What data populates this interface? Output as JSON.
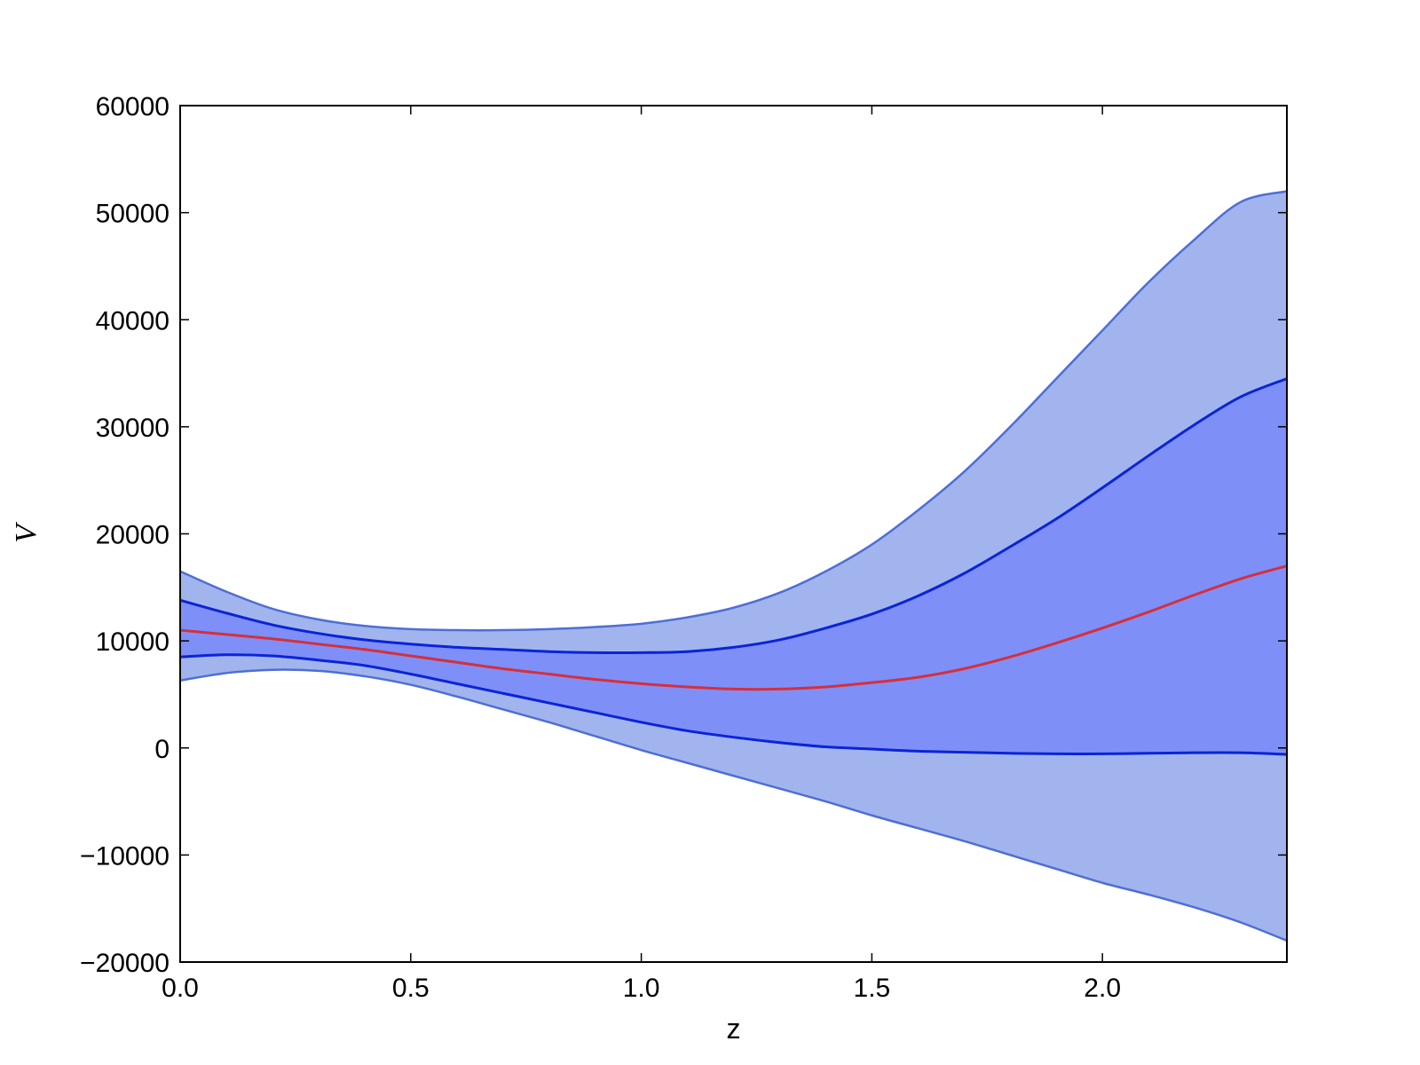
{
  "chart_data": {
    "type": "area",
    "title": "",
    "xlabel": "z",
    "ylabel": "V",
    "xlim": [
      0.0,
      2.4
    ],
    "ylim": [
      -20000,
      60000
    ],
    "xticks": [
      0.0,
      0.5,
      1.0,
      1.5,
      2.0
    ],
    "xtick_labels": [
      "0.0",
      "0.5",
      "1.0",
      "1.5",
      "2.0"
    ],
    "yticks": [
      -20000,
      -10000,
      0,
      10000,
      20000,
      30000,
      40000,
      50000,
      60000
    ],
    "ytick_labels": [
      "−20000",
      "−10000",
      "0",
      "10000",
      "20000",
      "30000",
      "40000",
      "50000",
      "60000"
    ],
    "grid": false,
    "x": [
      0.0,
      0.1,
      0.2,
      0.3,
      0.4,
      0.5,
      0.6,
      0.7,
      0.8,
      0.9,
      1.0,
      1.1,
      1.2,
      1.3,
      1.4,
      1.5,
      1.6,
      1.7,
      1.8,
      1.9,
      2.0,
      2.1,
      2.2,
      2.3,
      2.4
    ],
    "series": [
      {
        "role": "outer-upper",
        "values": [
          16500,
          14600,
          13000,
          12000,
          11400,
          11100,
          11000,
          11000,
          11100,
          11300,
          11600,
          12200,
          13100,
          14500,
          16500,
          19000,
          22200,
          25800,
          30000,
          34500,
          39000,
          43500,
          47500,
          51000,
          52000
        ]
      },
      {
        "role": "inner-upper",
        "values": [
          13800,
          12600,
          11500,
          10700,
          10100,
          9700,
          9400,
          9200,
          9000,
          8900,
          8900,
          9000,
          9400,
          10100,
          11200,
          12500,
          14200,
          16300,
          18800,
          21400,
          24300,
          27300,
          30200,
          32800,
          34500
        ]
      },
      {
        "role": "median",
        "values": [
          11000,
          10600,
          10200,
          9700,
          9200,
          8600,
          8000,
          7400,
          6900,
          6400,
          6000,
          5700,
          5500,
          5500,
          5700,
          6100,
          6600,
          7400,
          8500,
          9800,
          11200,
          12700,
          14300,
          15800,
          17000
        ]
      },
      {
        "role": "inner-lower",
        "values": [
          8500,
          8700,
          8600,
          8200,
          7700,
          6900,
          6000,
          5100,
          4200,
          3300,
          2400,
          1600,
          1000,
          500,
          100,
          -100,
          -300,
          -400,
          -500,
          -550,
          -550,
          -500,
          -450,
          -450,
          -600
        ]
      },
      {
        "role": "outer-lower",
        "values": [
          6300,
          7000,
          7300,
          7200,
          6700,
          5900,
          4800,
          3600,
          2400,
          1100,
          -200,
          -1400,
          -2600,
          -3800,
          -5000,
          -6300,
          -7500,
          -8700,
          -10000,
          -11300,
          -12600,
          -13700,
          -14900,
          -16300,
          -18000
        ]
      }
    ],
    "colors": {
      "outer_band": "#a2b4ee",
      "inner_band": "#7f8ff8",
      "outer_edge": "#4e6ed6",
      "inner_edge": "#0a24d8",
      "median": "#d62f3a",
      "axes": "#000000"
    }
  }
}
